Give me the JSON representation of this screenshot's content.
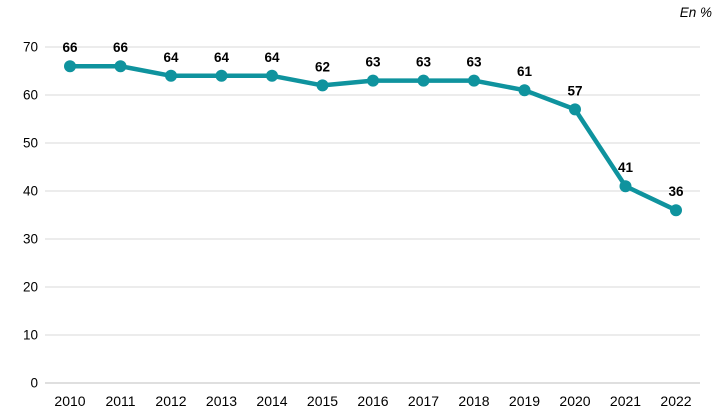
{
  "chart_data": {
    "type": "line",
    "title": "",
    "unit_label": "En %",
    "categories": [
      "2010",
      "2011",
      "2012",
      "2013",
      "2014",
      "2015",
      "2016",
      "2017",
      "2018",
      "2019",
      "2020",
      "2021",
      "2022"
    ],
    "values": [
      66,
      66,
      64,
      64,
      64,
      62,
      63,
      63,
      63,
      61,
      57,
      41,
      36
    ],
    "ylim": [
      0,
      70
    ],
    "yticks": [
      0,
      10,
      20,
      30,
      40,
      50,
      60,
      70
    ],
    "grid": true,
    "legend_position": "none",
    "data_labels": true,
    "colors": {
      "line": "#0F939E",
      "marker": "#0F939E",
      "grid": "#d9d9d9",
      "zero_axis": "#bfbfbf",
      "text": "#000000"
    }
  }
}
